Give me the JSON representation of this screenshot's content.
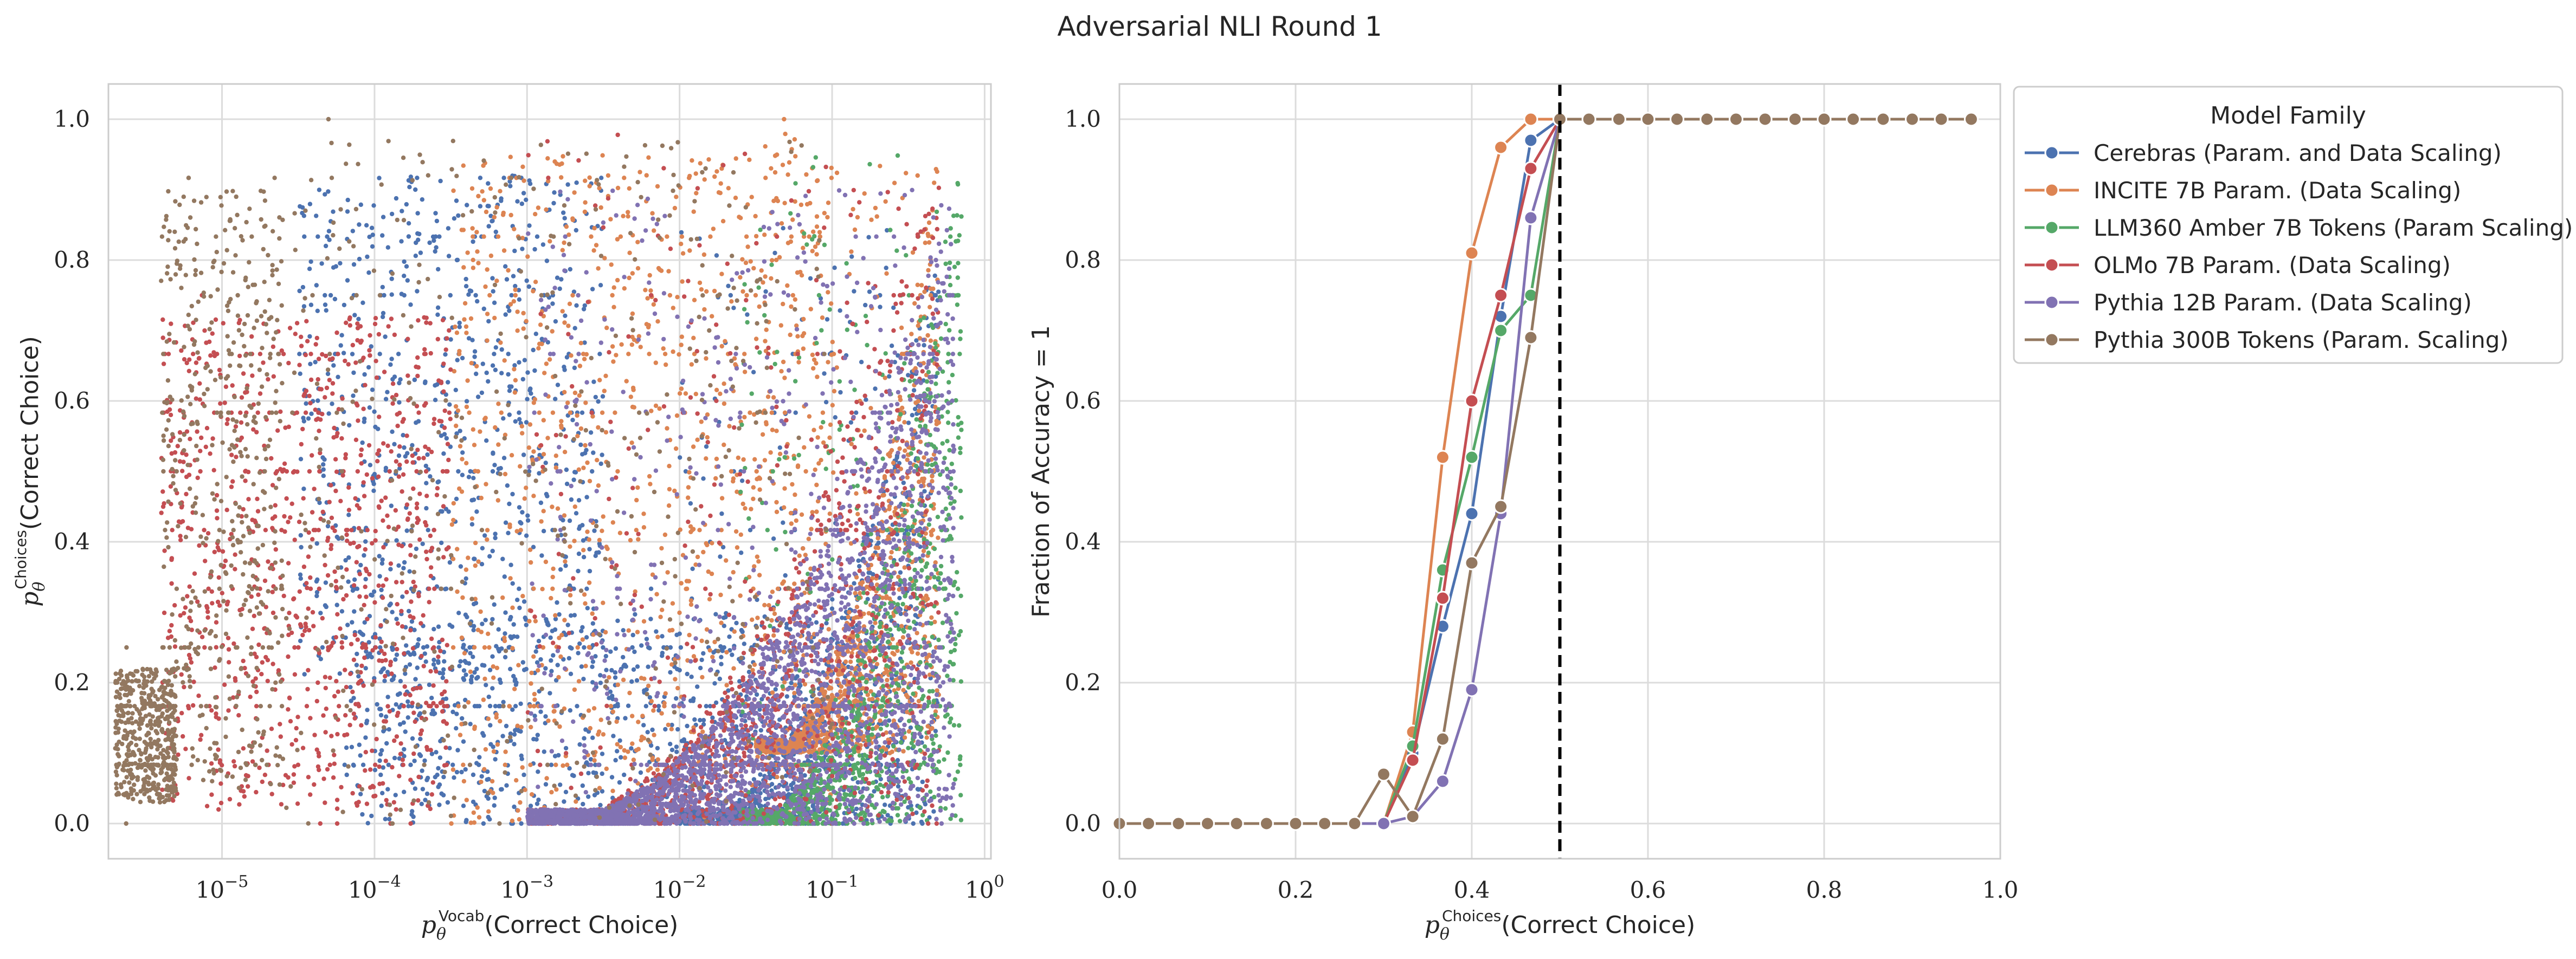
{
  "figure": {
    "title": "Adversarial NLI Round 1"
  },
  "colors": {
    "Cerebras (Param. and Data Scaling)": "#4c72b0",
    "INCITE 7B Param. (Data Scaling)": "#dd8452",
    "LLM360 Amber 7B Tokens (Param Scaling)": "#55a868",
    "OLMo 7B Param. (Data Scaling)": "#c44e52",
    "Pythia 12B Param. (Data Scaling)": "#8172b3",
    "Pythia 300B Tokens (Param. Scaling)": "#937860",
    "grid": "#dcdcdc",
    "axes_edge": "#cccccc",
    "threshold_line": "#000000"
  },
  "chart_data": [
    {
      "type": "scatter",
      "title": "",
      "xlabel_math": "p",
      "xlabel_sub": "θ",
      "xlabel_sup": "Vocab",
      "xlabel_text": "(Correct Choice)",
      "ylabel_math": "p",
      "ylabel_sub": "θ",
      "ylabel_sup": "Choices",
      "ylabel_text": "(Correct Choice)",
      "xscale": "log",
      "xlim": [
        1.8e-06,
        1.1
      ],
      "ylim": [
        -0.05,
        1.05
      ],
      "xticks": [
        1e-05,
        0.0001,
        0.001,
        0.01,
        0.1,
        1
      ],
      "xtick_exponents": [
        "−5",
        "−4",
        "−3",
        "−2",
        "−1",
        "0"
      ],
      "xtick_base": "10",
      "yticks": [
        0.0,
        0.2,
        0.4,
        0.6,
        0.8,
        1.0
      ],
      "ytick_labels": [
        "0.0",
        "0.2",
        "0.4",
        "0.6",
        "0.8",
        "1.0"
      ],
      "grid": true,
      "legend": "none",
      "point_counts": {
        "Cerebras (Param. and Data Scaling)": 2600,
        "INCITE 7B Param. (Data Scaling)": 2200,
        "LLM360 Amber 7B Tokens (Param Scaling)": 1200,
        "OLMo 7B Param. (Data Scaling)": 2200,
        "Pythia 12B Param. (Data Scaling)": 3000,
        "Pythia 300B Tokens (Param. Scaling)": 1400
      },
      "series": [
        {
          "name": "Cerebras (Param. and Data Scaling)",
          "clusters": [
            {
              "logx": [
                -4.5,
                -2.5
              ],
              "y": [
                0.2,
                0.92
              ],
              "share": 0.3
            },
            {
              "logx": [
                -4.2,
                -1.0
              ],
              "y": [
                0.0,
                0.3
              ],
              "share": 0.3
            },
            {
              "logx": [
                -2.0,
                -0.3
              ],
              "y": [
                0.0,
                0.85
              ],
              "share": 0.4
            }
          ]
        },
        {
          "name": "INCITE 7B Param. (Data Scaling)",
          "clusters": [
            {
              "logx": [
                -3.5,
                -1.0
              ],
              "y": [
                0.0,
                0.95
              ],
              "share": 0.45
            },
            {
              "logx": [
                -1.5,
                -0.3
              ],
              "y": [
                0.1,
                0.98
              ],
              "share": 0.55
            }
          ]
        },
        {
          "name": "LLM360 Amber 7B Tokens (Param Scaling)",
          "clusters": [
            {
              "logx": [
                -1.6,
                -0.15
              ],
              "y": [
                0.0,
                0.95
              ],
              "share": 1.0
            }
          ]
        },
        {
          "name": "OLMo 7B Param. (Data Scaling)",
          "clusters": [
            {
              "logx": [
                -5.4,
                -3.5
              ],
              "y": [
                0.02,
                0.72
              ],
              "share": 0.45
            },
            {
              "logx": [
                -3.0,
                -0.3
              ],
              "y": [
                0.0,
                0.98
              ],
              "share": 0.55
            }
          ]
        },
        {
          "name": "Pythia 12B Param. (Data Scaling)",
          "clusters": [
            {
              "logx": [
                -3.0,
                -0.2
              ],
              "y": [
                0.0,
                0.9
              ],
              "share": 1.0
            }
          ]
        },
        {
          "name": "Pythia 300B Tokens (Param. Scaling)",
          "clusters": [
            {
              "logx": [
                -5.7,
                -5.3
              ],
              "y": [
                0.03,
                0.22
              ],
              "share": 0.35
            },
            {
              "logx": [
                -5.4,
                -4.6
              ],
              "y": [
                0.05,
                0.9
              ],
              "share": 0.35
            },
            {
              "logx": [
                -4.6,
                -1.0
              ],
              "y": [
                0.0,
                0.97
              ],
              "share": 0.3
            }
          ]
        }
      ]
    },
    {
      "type": "line",
      "title": "",
      "xlabel_math": "p",
      "xlabel_sub": "θ",
      "xlabel_sup": "Choices",
      "xlabel_text": "(Correct Choice)",
      "ylabel": "Fraction of Accuracy = 1",
      "xlim": [
        0.0,
        1.0
      ],
      "ylim": [
        -0.05,
        1.05
      ],
      "xticks": [
        0.0,
        0.2,
        0.4,
        0.6,
        0.8,
        1.0
      ],
      "xtick_labels": [
        "0.0",
        "0.2",
        "0.4",
        "0.6",
        "0.8",
        "1.0"
      ],
      "yticks": [
        0.0,
        0.2,
        0.4,
        0.6,
        0.8,
        1.0
      ],
      "ytick_labels": [
        "0.0",
        "0.2",
        "0.4",
        "0.6",
        "0.8",
        "1.0"
      ],
      "threshold_x": 0.5,
      "grid": true,
      "legend": {
        "title": "Model Family",
        "placement": "outside right, top",
        "entries": [
          "Cerebras (Param. and Data Scaling)",
          "INCITE 7B Param. (Data Scaling)",
          "LLM360 Amber 7B Tokens (Param Scaling)",
          "OLMo 7B Param. (Data Scaling)",
          "Pythia 12B Param. (Data Scaling)",
          "Pythia 300B Tokens (Param. Scaling)"
        ]
      },
      "shared_tail": {
        "x": [
          0.0,
          0.033,
          0.067,
          0.1,
          0.133,
          0.167,
          0.2,
          0.233,
          0.267,
          0.5,
          0.533,
          0.567,
          0.6,
          0.633,
          0.667,
          0.7,
          0.733,
          0.767,
          0.8,
          0.833,
          0.867,
          0.9,
          0.933,
          0.967
        ],
        "y": [
          0,
          0,
          0,
          0,
          0,
          0,
          0,
          0,
          0,
          1,
          1,
          1,
          1,
          1,
          1,
          1,
          1,
          1,
          1,
          1,
          1,
          1,
          1,
          1
        ]
      },
      "series": [
        {
          "name": "Cerebras (Param. and Data Scaling)",
          "x": [
            0.0,
            0.033,
            0.067,
            0.1,
            0.133,
            0.167,
            0.2,
            0.233,
            0.267,
            0.3,
            0.333,
            0.367,
            0.4,
            0.433,
            0.467,
            0.5,
            0.533,
            0.567,
            0.6,
            0.633,
            0.667,
            0.7,
            0.733,
            0.767,
            0.8,
            0.833,
            0.867,
            0.9,
            0.933,
            0.967
          ],
          "y": [
            0,
            0,
            0,
            0,
            0,
            0,
            0,
            0,
            0,
            0.0,
            0.1,
            0.28,
            0.44,
            0.72,
            0.97,
            1,
            1,
            1,
            1,
            1,
            1,
            1,
            1,
            1,
            1,
            1,
            1,
            1,
            1,
            1
          ]
        },
        {
          "name": "INCITE 7B Param. (Data Scaling)",
          "x": [
            0.0,
            0.033,
            0.067,
            0.1,
            0.133,
            0.167,
            0.2,
            0.233,
            0.267,
            0.3,
            0.333,
            0.367,
            0.4,
            0.433,
            0.467,
            0.5,
            0.533,
            0.567,
            0.6,
            0.633,
            0.667,
            0.7,
            0.733,
            0.767,
            0.8,
            0.833,
            0.867,
            0.9,
            0.933,
            0.967
          ],
          "y": [
            0,
            0,
            0,
            0,
            0,
            0,
            0,
            0,
            0,
            0.0,
            0.13,
            0.52,
            0.81,
            0.96,
            1.0,
            1,
            1,
            1,
            1,
            1,
            1,
            1,
            1,
            1,
            1,
            1,
            1,
            1,
            1,
            1
          ]
        },
        {
          "name": "LLM360 Amber 7B Tokens (Param Scaling)",
          "x": [
            0.0,
            0.033,
            0.067,
            0.1,
            0.133,
            0.167,
            0.2,
            0.233,
            0.267,
            0.3,
            0.333,
            0.367,
            0.4,
            0.433,
            0.467,
            0.5,
            0.533,
            0.567,
            0.6,
            0.633,
            0.667,
            0.7,
            0.733,
            0.767,
            0.8,
            0.833,
            0.867,
            0.9,
            0.933,
            0.967
          ],
          "y": [
            0,
            0,
            0,
            0,
            0,
            0,
            0,
            0,
            0,
            0.0,
            0.11,
            0.36,
            0.52,
            0.7,
            0.75,
            1,
            1,
            1,
            1,
            1,
            1,
            1,
            1,
            1,
            1,
            1,
            1,
            1,
            1,
            1
          ]
        },
        {
          "name": "OLMo 7B Param. (Data Scaling)",
          "x": [
            0.0,
            0.033,
            0.067,
            0.1,
            0.133,
            0.167,
            0.2,
            0.233,
            0.267,
            0.3,
            0.333,
            0.367,
            0.4,
            0.433,
            0.467,
            0.5,
            0.533,
            0.567,
            0.6,
            0.633,
            0.667,
            0.7,
            0.733,
            0.767,
            0.8,
            0.833,
            0.867,
            0.9,
            0.933,
            0.967
          ],
          "y": [
            0,
            0,
            0,
            0,
            0,
            0,
            0,
            0,
            0,
            0.0,
            0.09,
            0.32,
            0.6,
            0.75,
            0.93,
            1,
            1,
            1,
            1,
            1,
            1,
            1,
            1,
            1,
            1,
            1,
            1,
            1,
            1,
            1
          ]
        },
        {
          "name": "Pythia 12B Param. (Data Scaling)",
          "x": [
            0.0,
            0.033,
            0.067,
            0.1,
            0.133,
            0.167,
            0.2,
            0.233,
            0.267,
            0.3,
            0.333,
            0.367,
            0.4,
            0.433,
            0.467,
            0.5,
            0.533,
            0.567,
            0.6,
            0.633,
            0.667,
            0.7,
            0.733,
            0.767,
            0.8,
            0.833,
            0.867,
            0.9,
            0.933,
            0.967
          ],
          "y": [
            0,
            0,
            0,
            0,
            0,
            0,
            0,
            0,
            0,
            0.0,
            0.01,
            0.06,
            0.19,
            0.44,
            0.86,
            1,
            1,
            1,
            1,
            1,
            1,
            1,
            1,
            1,
            1,
            1,
            1,
            1,
            1,
            1
          ]
        },
        {
          "name": "Pythia 300B Tokens (Param. Scaling)",
          "x": [
            0.0,
            0.033,
            0.067,
            0.1,
            0.133,
            0.167,
            0.2,
            0.233,
            0.267,
            0.3,
            0.333,
            0.367,
            0.4,
            0.433,
            0.467,
            0.5,
            0.533,
            0.567,
            0.6,
            0.633,
            0.667,
            0.7,
            0.733,
            0.767,
            0.8,
            0.833,
            0.867,
            0.9,
            0.933,
            0.967
          ],
          "y": [
            0,
            0,
            0,
            0,
            0,
            0,
            0,
            0,
            0,
            0.07,
            0.01,
            0.12,
            0.37,
            0.45,
            0.69,
            1,
            1,
            1,
            1,
            1,
            1,
            1,
            1,
            1,
            1,
            1,
            1,
            1,
            1,
            1
          ]
        }
      ]
    }
  ]
}
